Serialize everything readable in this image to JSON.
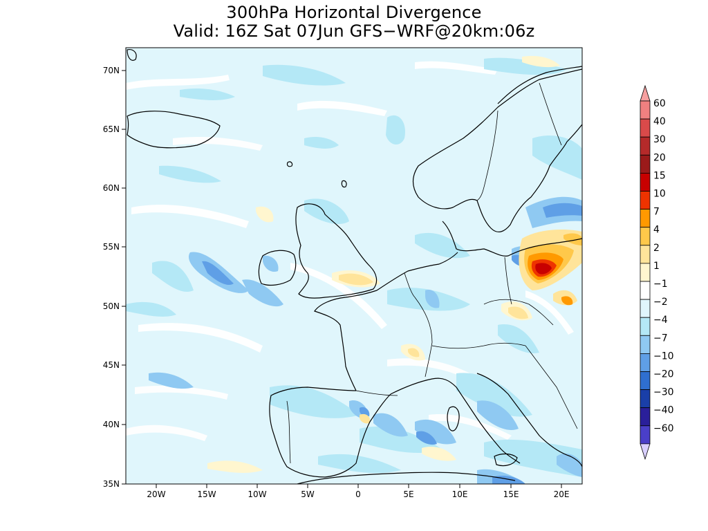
{
  "title": {
    "line1": "300hPa Horizontal Divergence",
    "line2": "Valid: 16Z Sat 07Jun GFS−WRF@20km:06z"
  },
  "map": {
    "background_color": "#e0f6fc",
    "lat_ticks": [
      "70N",
      "65N",
      "60N",
      "55N",
      "50N",
      "45N",
      "40N",
      "35N"
    ],
    "lon_ticks": [
      "20W",
      "15W",
      "10W",
      "5W",
      "0",
      "5E",
      "10E",
      "15E",
      "20E"
    ]
  },
  "colorbar": {
    "levels": [
      {
        "label": "60",
        "color": "#f08080"
      },
      {
        "label": "40",
        "color": "#d94a4a"
      },
      {
        "label": "30",
        "color": "#b52a2a"
      },
      {
        "label": "20",
        "color": "#9a1a1a"
      },
      {
        "label": "15",
        "color": "#c80000"
      },
      {
        "label": "10",
        "color": "#ee3300"
      },
      {
        "label": "7",
        "color": "#ff9900"
      },
      {
        "label": "4",
        "color": "#ffc84a"
      },
      {
        "label": "2",
        "color": "#ffe49a"
      },
      {
        "label": "1",
        "color": "#fff6cf"
      },
      {
        "label": "−1",
        "color": "#ffffff"
      },
      {
        "label": "−2",
        "color": "#e0f6fc"
      },
      {
        "label": "−4",
        "color": "#b4e8f6"
      },
      {
        "label": "−7",
        "color": "#8fc9f2"
      },
      {
        "label": "−10",
        "color": "#5f9fe6"
      },
      {
        "label": "−20",
        "color": "#2f6fd0"
      },
      {
        "label": "−30",
        "color": "#1a3fa8"
      },
      {
        "label": "−40",
        "color": "#2a1f9a"
      },
      {
        "label": "−60",
        "color": "#4a3fc8"
      }
    ],
    "top_arrow_color": "#f6a0a0",
    "bottom_cap_color": "#a898f0",
    "bottom_arrow_color": "#d9d0ff"
  }
}
